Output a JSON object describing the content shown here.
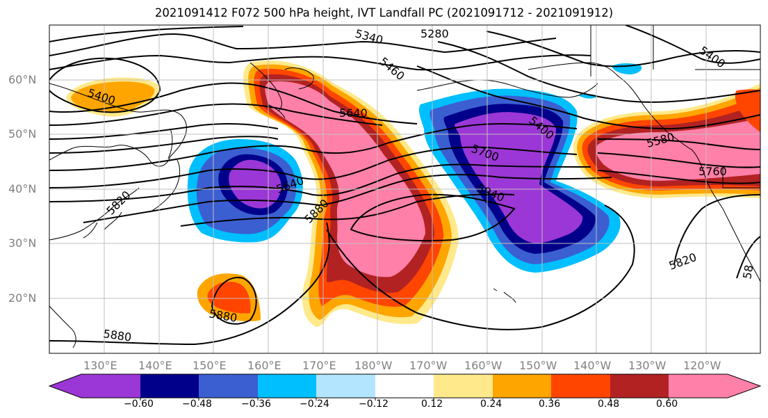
{
  "title": "2021091412 F072 500 hPa height, IVT Landfall PC (2021091712 - 2021091912)",
  "latitude_labels": [
    "60°N",
    "50°N",
    "40°N",
    "30°N",
    "20°N"
  ],
  "longitude_labels": [
    "130°E",
    "140°E",
    "150°E",
    "160°E",
    "170°E",
    "180°W",
    "170°W",
    "160°W",
    "150°W",
    "140°W",
    "130°W",
    "120°W"
  ],
  "contour_labels": [
    "5340",
    "5280",
    "5460",
    "5400",
    "5400",
    "5400",
    "5640",
    "5700",
    "5580",
    "5760",
    "5640",
    "5940",
    "5820",
    "5880",
    "5820",
    "5880",
    "5880",
    "58"
  ],
  "colorbar": {
    "tick_labels": [
      "−0.60",
      "−0.48",
      "−0.36",
      "−0.24",
      "−0.12",
      "0.12",
      "0.24",
      "0.36",
      "0.48",
      "0.60"
    ],
    "colors": [
      "#9b37d6",
      "#00008b",
      "#3b5fd1",
      "#00bfff",
      "#b3e5ff",
      "#ffffff",
      "#ffe98a",
      "#ffa500",
      "#ff4500",
      "#b22222",
      "#ff80a8"
    ]
  }
}
